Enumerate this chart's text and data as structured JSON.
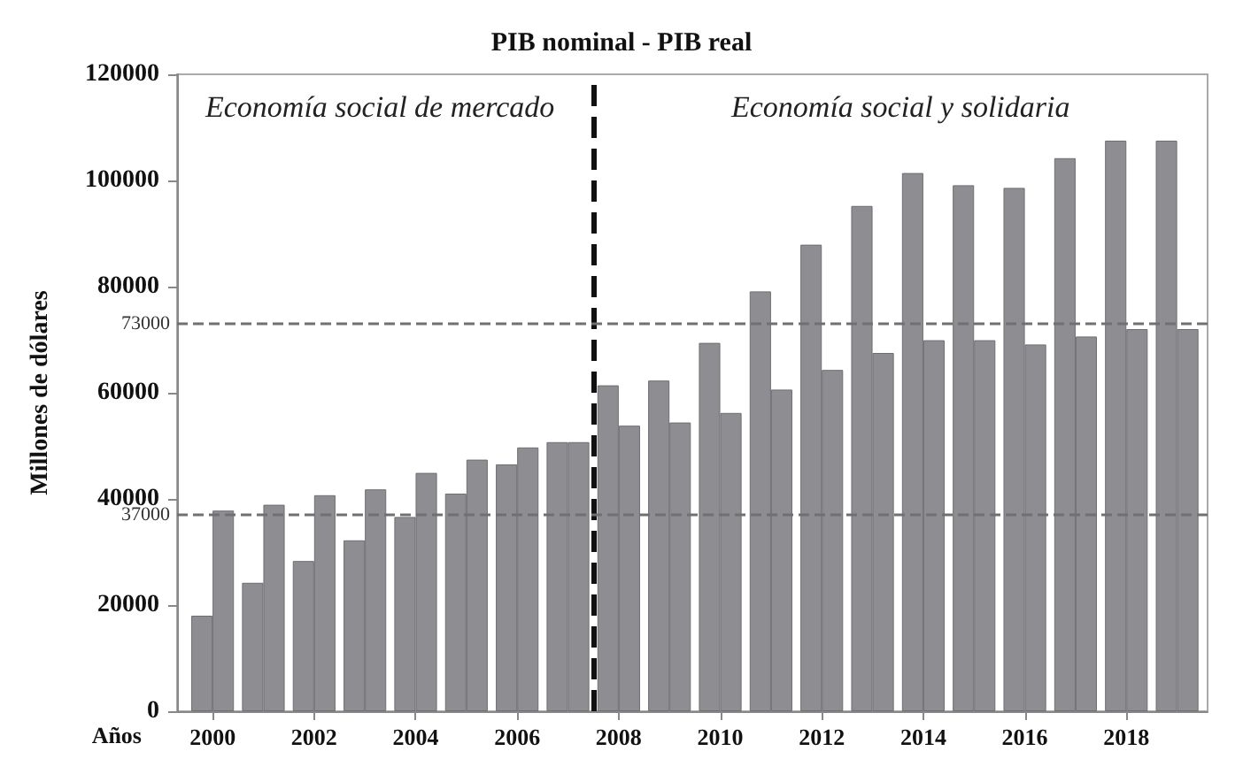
{
  "chart_data": {
    "type": "bar",
    "title": "PIB nominal - PIB real",
    "xlabel": "Años",
    "ylabel": "Millones de dólares",
    "annotations": [
      "Economía social de mercado",
      "Economía social y solidaria"
    ],
    "x": [
      2000,
      2001,
      2002,
      2003,
      2004,
      2005,
      2006,
      2007,
      2008,
      2009,
      2010,
      2011,
      2012,
      2013,
      2014,
      2015,
      2016,
      2017,
      2018,
      2019
    ],
    "xlim": [
      1999.3,
      2019.6
    ],
    "xticks": [
      2000,
      2002,
      2004,
      2006,
      2008,
      2010,
      2012,
      2014,
      2016,
      2018
    ],
    "ylim": [
      0,
      120000
    ],
    "yticks": [
      0,
      20000,
      40000,
      60000,
      80000,
      100000,
      120000
    ],
    "series": [
      {
        "color": "#8e8e92",
        "values": [
          18000,
          24200,
          28300,
          32200,
          36600,
          41000,
          46500,
          50700,
          61400,
          62300,
          69400,
          79100,
          87900,
          95200,
          101400,
          99100,
          98600,
          104200,
          107500,
          107500
        ]
      },
      {
        "color": "#8e8e92",
        "values": [
          37800,
          38900,
          40700,
          41800,
          44900,
          47400,
          49700,
          50700,
          53800,
          54400,
          56200,
          60600,
          64300,
          67500,
          69900,
          69900,
          69100,
          70600,
          72000,
          72000
        ]
      }
    ],
    "ref_lines": [
      {
        "axis": "y",
        "value": 37000,
        "label": "37000",
        "color": "#707070",
        "line_style": "dashed"
      },
      {
        "axis": "y",
        "value": 73000,
        "label": "73000",
        "color": "#707070",
        "line_style": "dashed"
      },
      {
        "axis": "x",
        "value": 2007.5,
        "color": "#111111",
        "line_style": "dashed"
      }
    ],
    "grid": false
  }
}
